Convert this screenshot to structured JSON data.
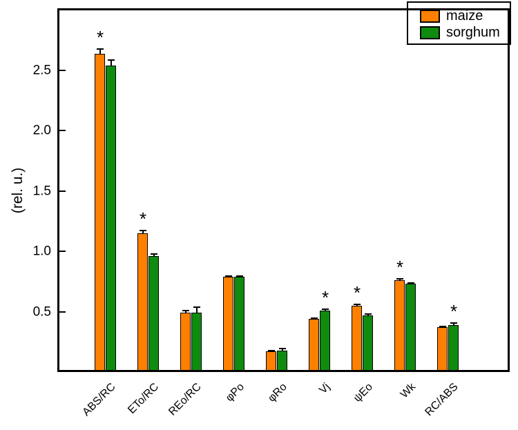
{
  "chart_data": {
    "type": "bar",
    "title": "",
    "xlabel": "",
    "ylabel": "(rel. u.)",
    "ylim": [
      0,
      3.0
    ],
    "yticks": [
      "0.5",
      "1.0",
      "1.5",
      "2.0",
      "2.5"
    ],
    "grid": false,
    "legend_position": "top-right",
    "categories": [
      "ABS/RC",
      "ETo/RC",
      "REo/RC",
      "φPo",
      "φRo",
      "Vj",
      "ψEo",
      "Wk",
      "RC/ABS"
    ],
    "series": [
      {
        "name": "maize",
        "color": "#ff8000",
        "values": [
          2.64,
          1.15,
          0.49,
          0.79,
          0.17,
          0.44,
          0.55,
          0.76,
          0.37
        ],
        "errors": [
          0.04,
          0.02,
          0.02,
          0.008,
          0.01,
          0.008,
          0.01,
          0.012,
          0.008
        ]
      },
      {
        "name": "sorghum",
        "color": "#0f8b0f",
        "values": [
          2.54,
          0.96,
          0.49,
          0.79,
          0.18,
          0.51,
          0.47,
          0.73,
          0.39
        ],
        "errors": [
          0.045,
          0.02,
          0.05,
          0.008,
          0.015,
          0.008,
          0.008,
          0.008,
          0.015
        ]
      }
    ],
    "significance_marker": "*",
    "significance": [
      "maize",
      "maize",
      "",
      "",
      "",
      "sorghum",
      "maize",
      "maize",
      "sorghum"
    ]
  },
  "colors": {
    "axis": "#000000",
    "background": "#ffffff"
  }
}
